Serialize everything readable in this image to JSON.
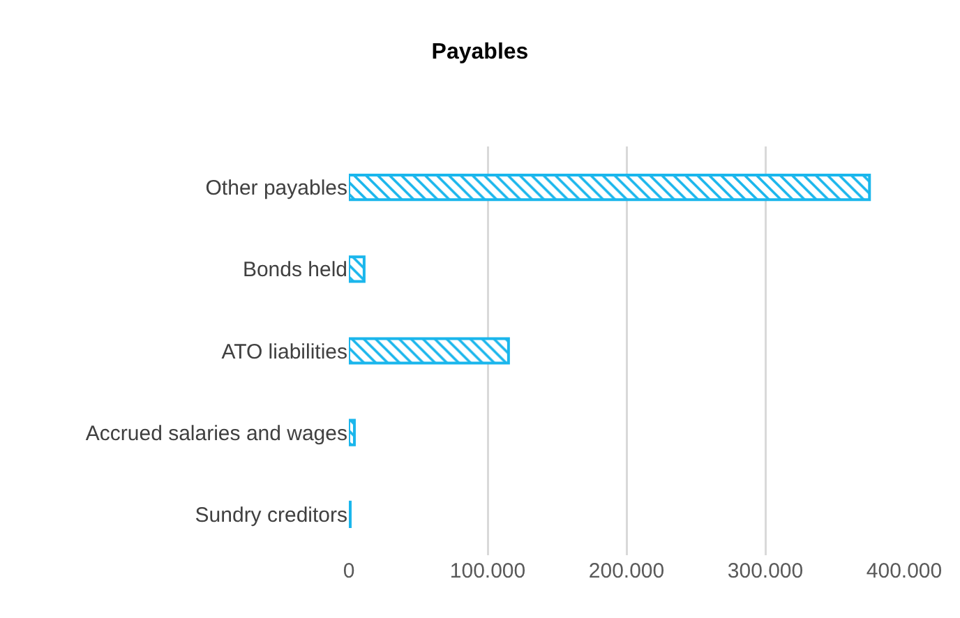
{
  "chart_data": {
    "type": "bar",
    "title": "Payables",
    "orientation": "horizontal",
    "categories": [
      "Other payables",
      "Bonds held",
      "ATO liabilities",
      "Accrued salaries and wages",
      "Sundry creditors"
    ],
    "values": [
      375000,
      11000,
      115000,
      4000,
      1000
    ],
    "color": "#1ab6ec",
    "xlim": [
      0,
      400000
    ],
    "xticks": [
      0,
      {
        "value": 100000,
        "label": "100.000"
      },
      {
        "value": 200000,
        "label": "200.000"
      },
      {
        "value": 300000,
        "label": "300.000"
      },
      {
        "value": 400000,
        "label": "400.000"
      }
    ],
    "grid": "x"
  }
}
